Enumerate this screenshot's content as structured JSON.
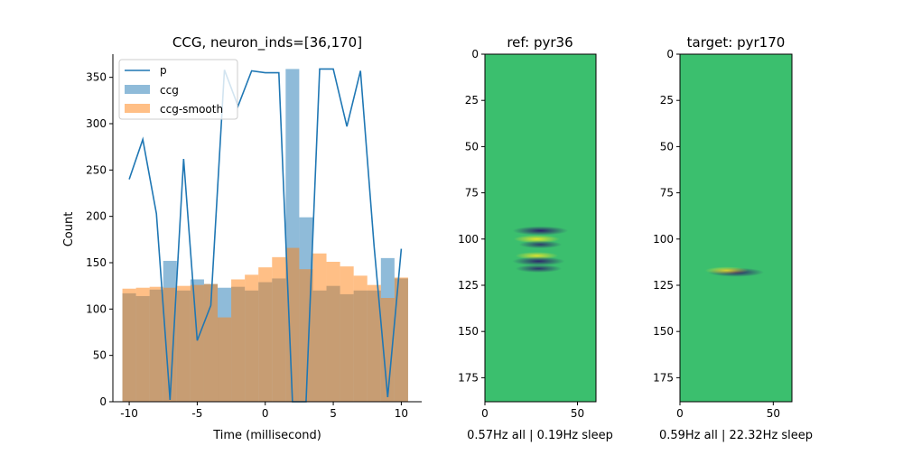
{
  "chart_data": [
    {
      "type": "bar",
      "title": "CCG, neuron_inds=[36,170]",
      "xlabel": "Time (millisecond)",
      "ylabel": "Count",
      "xlim": [
        -11.2,
        11.5
      ],
      "ylim": [
        0,
        375
      ],
      "xticks": [
        -10,
        -5,
        0,
        5,
        10
      ],
      "yticks": [
        0,
        50,
        100,
        150,
        200,
        250,
        300,
        350
      ],
      "grid": false,
      "legend_placement": "top-left",
      "legend": [
        "p",
        "ccg",
        "ccg-smooth"
      ],
      "bin_edges": [
        -10.5,
        -9.5,
        -8.5,
        -7.5,
        -6.5,
        -5.5,
        -4.5,
        -3.5,
        -2.5,
        -1.5,
        -0.5,
        0.5,
        1.5,
        2.5,
        3.5,
        4.5,
        5.5,
        6.5,
        7.5,
        8.5,
        9.5,
        10.5
      ],
      "series": [
        {
          "name": "ccg",
          "kind": "histogram",
          "color": "#1f77b4",
          "alpha": 0.5,
          "values": [
            117,
            114,
            121,
            152,
            120,
            132,
            127,
            123,
            124,
            120,
            129,
            133,
            359,
            199,
            120,
            125,
            116,
            120,
            120,
            155,
            133
          ]
        },
        {
          "name": "ccg-smooth",
          "kind": "histogram",
          "color": "#ff7f0e",
          "alpha": 0.5,
          "values": [
            122,
            123,
            124,
            123,
            125,
            126,
            127,
            91,
            132,
            137,
            145,
            156,
            166,
            143,
            160,
            151,
            146,
            136,
            126,
            112,
            134
          ]
        },
        {
          "name": "p",
          "kind": "line",
          "color": "#1f77b4",
          "x": [
            -10,
            -9,
            -8,
            -7,
            -6,
            -5,
            -4,
            -3,
            -2,
            -1,
            0,
            1,
            2,
            3,
            4,
            5,
            6,
            7,
            8,
            9,
            10
          ],
          "values": [
            240,
            283,
            203,
            2,
            262,
            66,
            104,
            358,
            319,
            357,
            355,
            355,
            0,
            0,
            359,
            359,
            297,
            357,
            168,
            5,
            165
          ]
        }
      ]
    },
    {
      "type": "heatmap",
      "title": "ref: pyr36",
      "xlabel": "0.57Hz all | 0.19Hz sleep",
      "xlim": [
        0,
        60
      ],
      "ylim": [
        188,
        0
      ],
      "xticks": [
        0,
        50
      ],
      "yticks": [
        0,
        25,
        50,
        75,
        100,
        125,
        150,
        175
      ],
      "colormap": "viridis",
      "background_color": "#3bbf6e",
      "features": [
        {
          "y": 95.5,
          "x": 30,
          "sign": -1,
          "strength": 1.0
        },
        {
          "y": 100,
          "x": 28,
          "sign": 1,
          "strength": 0.7
        },
        {
          "y": 103,
          "x": 30,
          "sign": -1,
          "strength": 0.6
        },
        {
          "y": 109,
          "x": 28,
          "sign": 1,
          "strength": 0.6
        },
        {
          "y": 112,
          "x": 29,
          "sign": -1,
          "strength": 0.9
        },
        {
          "y": 116,
          "x": 29,
          "sign": -1,
          "strength": 0.7
        }
      ]
    },
    {
      "type": "heatmap",
      "title": "target: pyr170",
      "xlabel": "0.59Hz all | 22.32Hz sleep",
      "xlim": [
        0,
        60
      ],
      "ylim": [
        188,
        0
      ],
      "xticks": [
        0,
        50
      ],
      "yticks": [
        0,
        25,
        50,
        75,
        100,
        125,
        150,
        175
      ],
      "colormap": "viridis",
      "background_color": "#3bbf6e",
      "features": [
        {
          "y": 118,
          "x": 30,
          "sign": -1,
          "strength": 1.0
        },
        {
          "y": 117,
          "x": 25,
          "sign": 1,
          "strength": 0.6
        }
      ]
    }
  ]
}
